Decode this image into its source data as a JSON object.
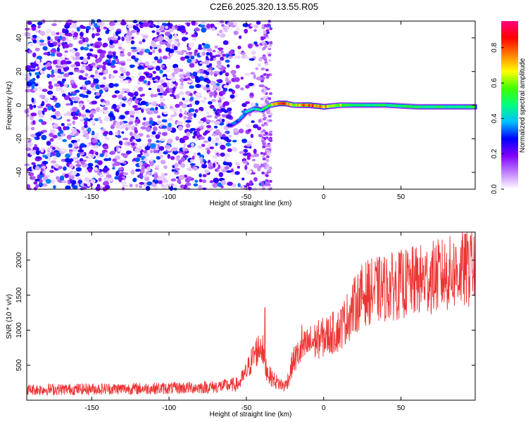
{
  "title": "C2E6.2025.320.13.55.R05",
  "chart_data": [
    {
      "type": "heatmap",
      "xlabel": "Height of straight line (km)",
      "ylabel": "Frequency (Hz)",
      "xlim": [
        -192,
        98
      ],
      "ylim": [
        -50,
        50
      ],
      "xticks": [
        -150,
        -100,
        -50,
        0,
        50
      ],
      "yticks": [
        -40,
        -20,
        0,
        20,
        40
      ],
      "colorbar": {
        "label": "Normalized spectral amplitude",
        "range": [
          0,
          0.95
        ],
        "ticks": [
          0.0,
          0.2,
          0.4,
          0.6,
          0.8
        ],
        "tick_labels": [
          "0.0",
          "0.2",
          "0.4",
          "0.6",
          "0.8"
        ],
        "colormap": [
          "#ffffff",
          "#c080ff",
          "#8000ff",
          "#0000ff",
          "#00c0ff",
          "#00ff80",
          "#40ff00",
          "#ffff00",
          "#ff8000",
          "#ff0000",
          "#ff0080"
        ]
      },
      "noise_region": {
        "x": [
          -192,
          -35
        ],
        "amplitude": "0.05-0.35"
      },
      "ridge": {
        "x": [
          -60,
          -55,
          -50,
          -45,
          -40,
          -35,
          -30,
          -25,
          -20,
          -10,
          0,
          10,
          20,
          40,
          60,
          80,
          95
        ],
        "y": [
          -12,
          -9,
          -4,
          -2,
          -3,
          0,
          1,
          1,
          0,
          0,
          -1,
          0,
          0,
          0,
          -1,
          -1,
          -1
        ],
        "amplitude": [
          0.3,
          0.35,
          0.4,
          0.45,
          0.45,
          0.55,
          0.8,
          0.85,
          0.6,
          0.85,
          0.75,
          0.6,
          0.5,
          0.5,
          0.5,
          0.5,
          0.5
        ]
      }
    },
    {
      "type": "line",
      "xlabel": "Height of straight line (km)",
      "ylabel": "SNR (10 * v/v)",
      "xlim": [
        -192,
        98
      ],
      "ylim": [
        0,
        2400
      ],
      "xticks": [
        -150,
        -100,
        -50,
        0,
        50
      ],
      "yticks": [
        500,
        1000,
        1500,
        2000
      ],
      "color": "#ee3333",
      "trend": {
        "x": [
          -192,
          -150,
          -100,
          -70,
          -55,
          -50,
          -45,
          -40,
          -38,
          -35,
          -30,
          -25,
          -22,
          -20,
          -15,
          -10,
          0,
          10,
          20,
          25,
          30,
          40,
          50,
          60,
          70,
          80,
          90,
          98
        ],
        "y": [
          150,
          160,
          170,
          190,
          230,
          400,
          650,
          800,
          500,
          350,
          250,
          200,
          350,
          550,
          700,
          800,
          900,
          1000,
          1350,
          1500,
          1550,
          1600,
          1650,
          1700,
          1750,
          1800,
          1850,
          1900
        ]
      },
      "spikes": [
        {
          "x": -38,
          "y": 1320
        },
        {
          "x": -14,
          "y": 1080
        },
        {
          "x": 12,
          "y": 1250
        },
        {
          "x": 95,
          "y": 2350
        }
      ]
    }
  ]
}
